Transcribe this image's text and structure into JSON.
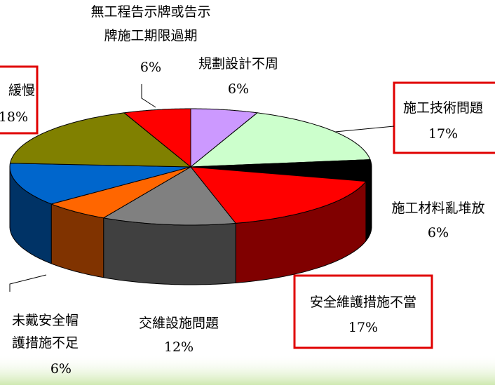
{
  "chart_data": {
    "type": "pie3d",
    "categories": [
      "規劃設計不周",
      "施工技術問題",
      "施工材料亂堆放",
      "安全維護措施不當",
      "交維設施問題",
      "未戴安全帽\n護措施不足",
      null,
      "緩慢",
      "無工程告示牌或告示\n牌施工期限過期"
    ],
    "values": [
      6,
      17,
      6,
      17,
      12,
      6,
      12,
      18,
      6
    ],
    "value_labels": [
      "6%",
      "17%",
      "6%",
      "17%",
      "12%",
      "6%",
      null,
      "18%",
      "6%"
    ],
    "colors": [
      "#cc99ff",
      "#ccffcc",
      "#000000",
      "#ff0000",
      "#808080",
      "#ff6600",
      "#0066cc",
      "#808000",
      "#ff0000"
    ],
    "boxed": [
      false,
      true,
      false,
      true,
      false,
      false,
      false,
      true,
      false
    ]
  }
}
